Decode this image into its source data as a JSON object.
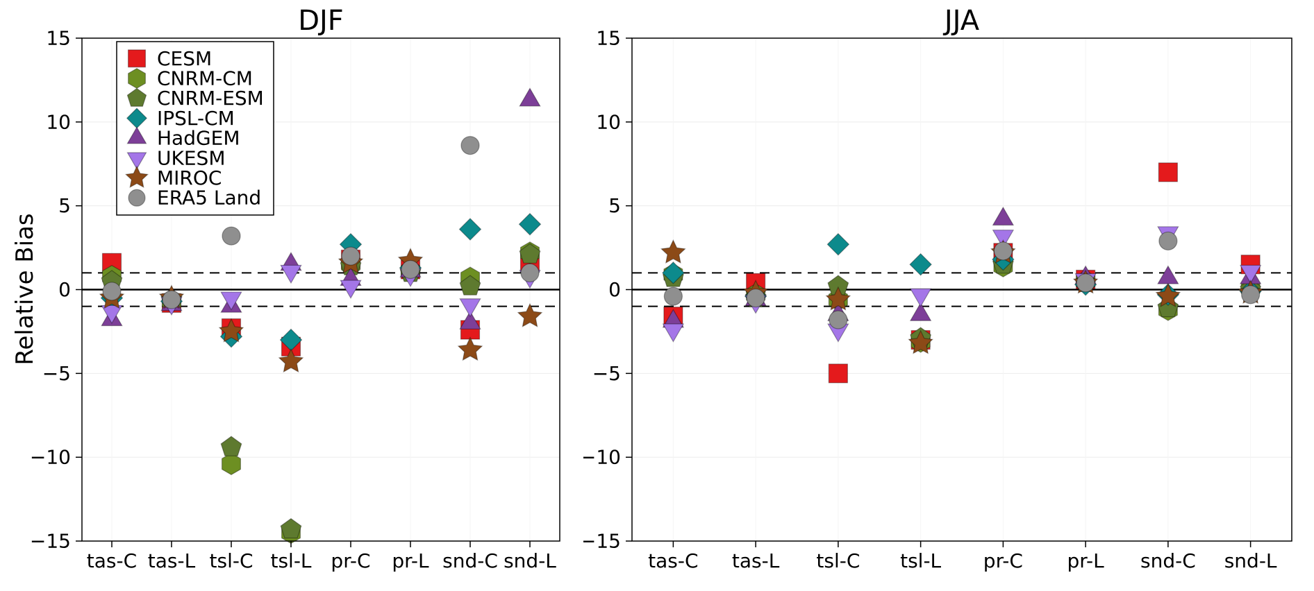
{
  "figure": {
    "background": "#ffffff"
  },
  "ylabel": "Relative Bias",
  "axis": {
    "ylim": [
      -15,
      15
    ],
    "yticks": [
      -15,
      -10,
      -5,
      0,
      5,
      10,
      15
    ],
    "ref_solid": [
      0
    ],
    "ref_dashed": [
      1,
      -1
    ]
  },
  "series_meta": [
    {
      "name": "CESM",
      "marker": "square",
      "color": "#e41a1c"
    },
    {
      "name": "CNRM-CM",
      "marker": "hexagon",
      "color": "#6d8f22"
    },
    {
      "name": "CNRM-ESM",
      "marker": "pentagon",
      "color": "#5e7a2f"
    },
    {
      "name": "IPSL-CM",
      "marker": "diamond",
      "color": "#0c8a8c"
    },
    {
      "name": "HadGEM",
      "marker": "triangle-up",
      "color": "#7d3f98"
    },
    {
      "name": "UKESM",
      "marker": "triangle-down",
      "color": "#a476e8"
    },
    {
      "name": "MIROC",
      "marker": "star",
      "color": "#8c4a17"
    },
    {
      "name": "ERA5 Land",
      "marker": "circle",
      "color": "#8f8f8f"
    }
  ],
  "chart_data": [
    {
      "type": "scatter",
      "title": "DJF",
      "show_legend": true,
      "legend_position": "upper left",
      "grid": true,
      "ylim": [
        -15,
        15
      ],
      "categories": [
        "tas-C",
        "tas-L",
        "tsl-C",
        "tsl-L",
        "pr-C",
        "pr-L",
        "snd-C",
        "snd-L"
      ],
      "series": [
        {
          "name": "CESM",
          "values": [
            1.6,
            -0.8,
            -2.3,
            -3.4,
            1.8,
            1.2,
            -2.4,
            1.6
          ]
        },
        {
          "name": "CNRM-CM",
          "values": [
            0.8,
            -0.7,
            -10.4,
            -14.5,
            1.5,
            1.1,
            0.7,
            2.2
          ]
        },
        {
          "name": "CNRM-ESM",
          "values": [
            0.5,
            -0.6,
            -9.4,
            -14.3,
            1.4,
            1.0,
            0.2,
            2.1
          ]
        },
        {
          "name": "IPSL-CM",
          "values": [
            -0.5,
            -0.7,
            -2.8,
            -3.0,
            2.7,
            1.3,
            3.6,
            3.9
          ]
        },
        {
          "name": "HadGEM",
          "values": [
            -1.8,
            -0.9,
            -1.0,
            1.5,
            0.6,
            1.1,
            -2.0,
            11.3
          ]
        },
        {
          "name": "UKESM",
          "values": [
            -1.3,
            -0.8,
            -0.5,
            1.1,
            0.2,
            0.9,
            -0.9,
            0.8
          ]
        },
        {
          "name": "MIROC",
          "values": [
            -0.5,
            -0.5,
            -2.5,
            -4.3,
            1.6,
            1.7,
            -3.6,
            -1.6
          ]
        },
        {
          "name": "ERA5 Land",
          "values": [
            -0.1,
            -0.6,
            3.2,
            null,
            2.0,
            1.2,
            8.6,
            1.0
          ]
        }
      ]
    },
    {
      "type": "scatter",
      "title": "JJA",
      "show_legend": false,
      "grid": true,
      "ylim": [
        -15,
        15
      ],
      "categories": [
        "tas-C",
        "tas-L",
        "tsl-C",
        "tsl-L",
        "pr-C",
        "pr-L",
        "snd-C",
        "snd-L"
      ],
      "series": [
        {
          "name": "CESM",
          "values": [
            -1.6,
            0.4,
            -5.0,
            -3.0,
            2.2,
            0.6,
            7.0,
            1.5
          ]
        },
        {
          "name": "CNRM-CM",
          "values": [
            0.9,
            -0.3,
            -0.6,
            -3.1,
            1.4,
            0.5,
            -1.2,
            0.1
          ]
        },
        {
          "name": "CNRM-ESM",
          "values": [
            0.7,
            -0.5,
            0.2,
            -2.9,
            1.5,
            0.4,
            -1.1,
            0.0
          ]
        },
        {
          "name": "IPSL-CM",
          "values": [
            1.0,
            -0.4,
            2.7,
            1.5,
            1.8,
            0.3,
            -0.3,
            -0.1
          ]
        },
        {
          "name": "HadGEM",
          "values": [
            -1.9,
            -0.6,
            -1.5,
            -1.5,
            4.2,
            0.7,
            0.7,
            0.7
          ]
        },
        {
          "name": "UKESM",
          "values": [
            -2.4,
            -0.7,
            -2.4,
            -0.3,
            3.2,
            0.6,
            3.4,
            1.1
          ]
        },
        {
          "name": "MIROC",
          "values": [
            2.2,
            -0.2,
            -0.6,
            -3.2,
            2.2,
            0.4,
            -0.4,
            -0.2
          ]
        },
        {
          "name": "ERA5 Land",
          "values": [
            -0.4,
            -0.5,
            -1.8,
            null,
            2.3,
            0.4,
            2.9,
            -0.3
          ]
        }
      ]
    }
  ]
}
